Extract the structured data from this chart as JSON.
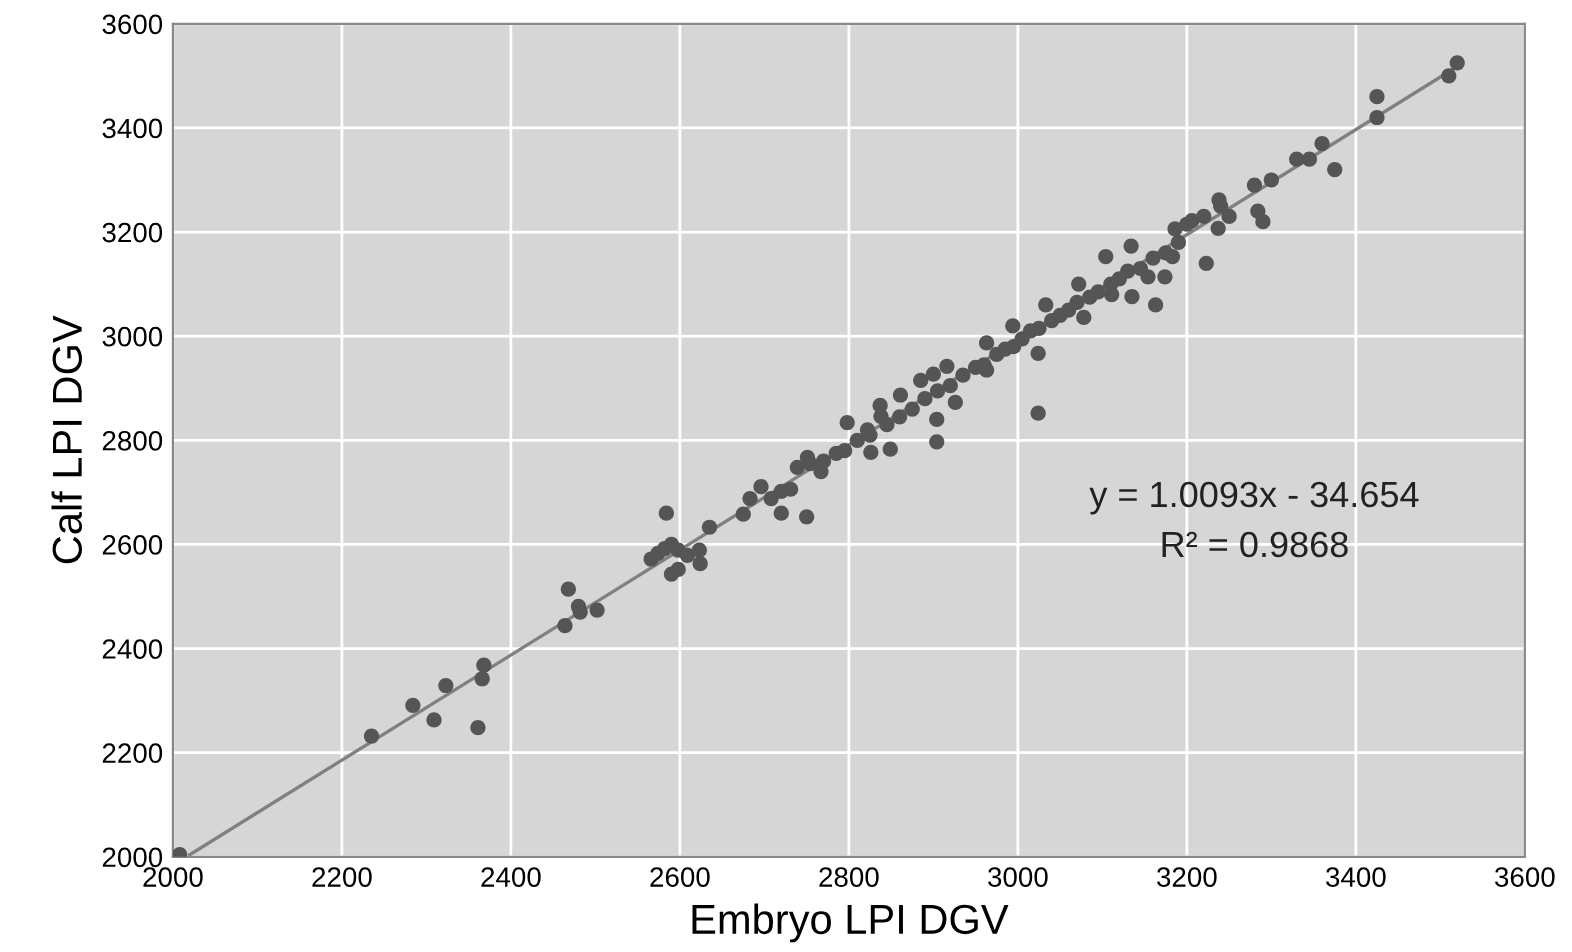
{
  "chart_data": {
    "type": "scatter",
    "xlabel": "Embryo LPI DGV",
    "ylabel": "Calf LPI DGV",
    "xlim": [
      2000,
      3600
    ],
    "ylim": [
      2000,
      3600
    ],
    "xticks": [
      2000,
      2200,
      2400,
      2600,
      2800,
      3000,
      3200,
      3400,
      3600
    ],
    "yticks": [
      2000,
      2200,
      2400,
      2600,
      2800,
      3000,
      3200,
      3400,
      3600
    ],
    "grid": true,
    "legend": false,
    "annotations": [
      "y = 1.0093x - 34.654",
      "R² = 0.9868"
    ],
    "series": [
      {
        "color": "#555555",
        "marker": "circle",
        "x": [
          2008,
          2235,
          2284,
          2309,
          2323,
          2361,
          2366,
          2368,
          2464,
          2468,
          2480,
          2482,
          2502,
          2584,
          2566,
          2574,
          2582,
          2590,
          2598,
          2590,
          2598,
          2609,
          2623,
          2624,
          2635,
          2675,
          2683,
          2696,
          2708,
          2720,
          2720,
          2731,
          2750,
          2739,
          2754,
          3024,
          3024,
          2904,
          2904,
          2849,
          2826,
          3163,
          3135,
          3223,
          3237,
          3284,
          3290,
          3238,
          3183,
          3174,
          3154,
          3078,
          3111,
          2926,
          2963,
          2916,
          2885,
          2838,
          2822,
          2767,
          2751,
          3134,
          3104,
          3186,
          3206,
          3072,
          3033,
          2994,
          2963,
          2900,
          2861,
          2837,
          2798,
          2770,
          2785,
          2795,
          2810,
          2825,
          2845,
          2860,
          2875,
          2890,
          2905,
          2920,
          2935,
          2950,
          2960,
          2975,
          2985,
          2995,
          3005,
          3015,
          3025,
          3040,
          3050,
          3060,
          3070,
          3085,
          3095,
          3110,
          3120,
          3130,
          3145,
          3160,
          3175,
          3190,
          3280,
          3300,
          3330,
          3345,
          3360,
          3375,
          3425,
          3425,
          3510,
          3520,
          3250,
          3240,
          3220,
          3200
        ],
        "values": [
          2004,
          2232,
          2291,
          2263,
          2329,
          2248,
          2342,
          2368,
          2444,
          2514,
          2481,
          2470,
          2474,
          2660,
          2572,
          2583,
          2592,
          2600,
          2589,
          2543,
          2552,
          2579,
          2589,
          2563,
          2633,
          2658,
          2688,
          2711,
          2688,
          2702,
          2660,
          2706,
          2653,
          2748,
          2755,
          2852,
          2967,
          2840,
          2797,
          2783,
          2777,
          3060,
          3076,
          3140,
          3207,
          3240,
          3220,
          3262,
          3153,
          3114,
          3114,
          3036,
          3080,
          2873,
          2935,
          2942,
          2915,
          2846,
          2820,
          2740,
          2767,
          3173,
          3153,
          3206,
          3222,
          3100,
          3060,
          3020,
          2987,
          2927,
          2887,
          2867,
          2834,
          2760,
          2775,
          2780,
          2800,
          2810,
          2830,
          2845,
          2860,
          2880,
          2895,
          2905,
          2925,
          2940,
          2945,
          2965,
          2975,
          2980,
          2995,
          3010,
          3015,
          3030,
          3040,
          3050,
          3065,
          3075,
          3085,
          3100,
          3110,
          3125,
          3130,
          3150,
          3160,
          3180,
          3290,
          3300,
          3340,
          3340,
          3370,
          3320,
          3460,
          3420,
          3500,
          3525,
          3230,
          3250,
          3230,
          3215
        ]
      },
      {
        "type": "line",
        "marker": "none",
        "color": "#808080",
        "x": [
          2020,
          3525
        ],
        "values": [
          2004,
          3523
        ]
      }
    ]
  }
}
